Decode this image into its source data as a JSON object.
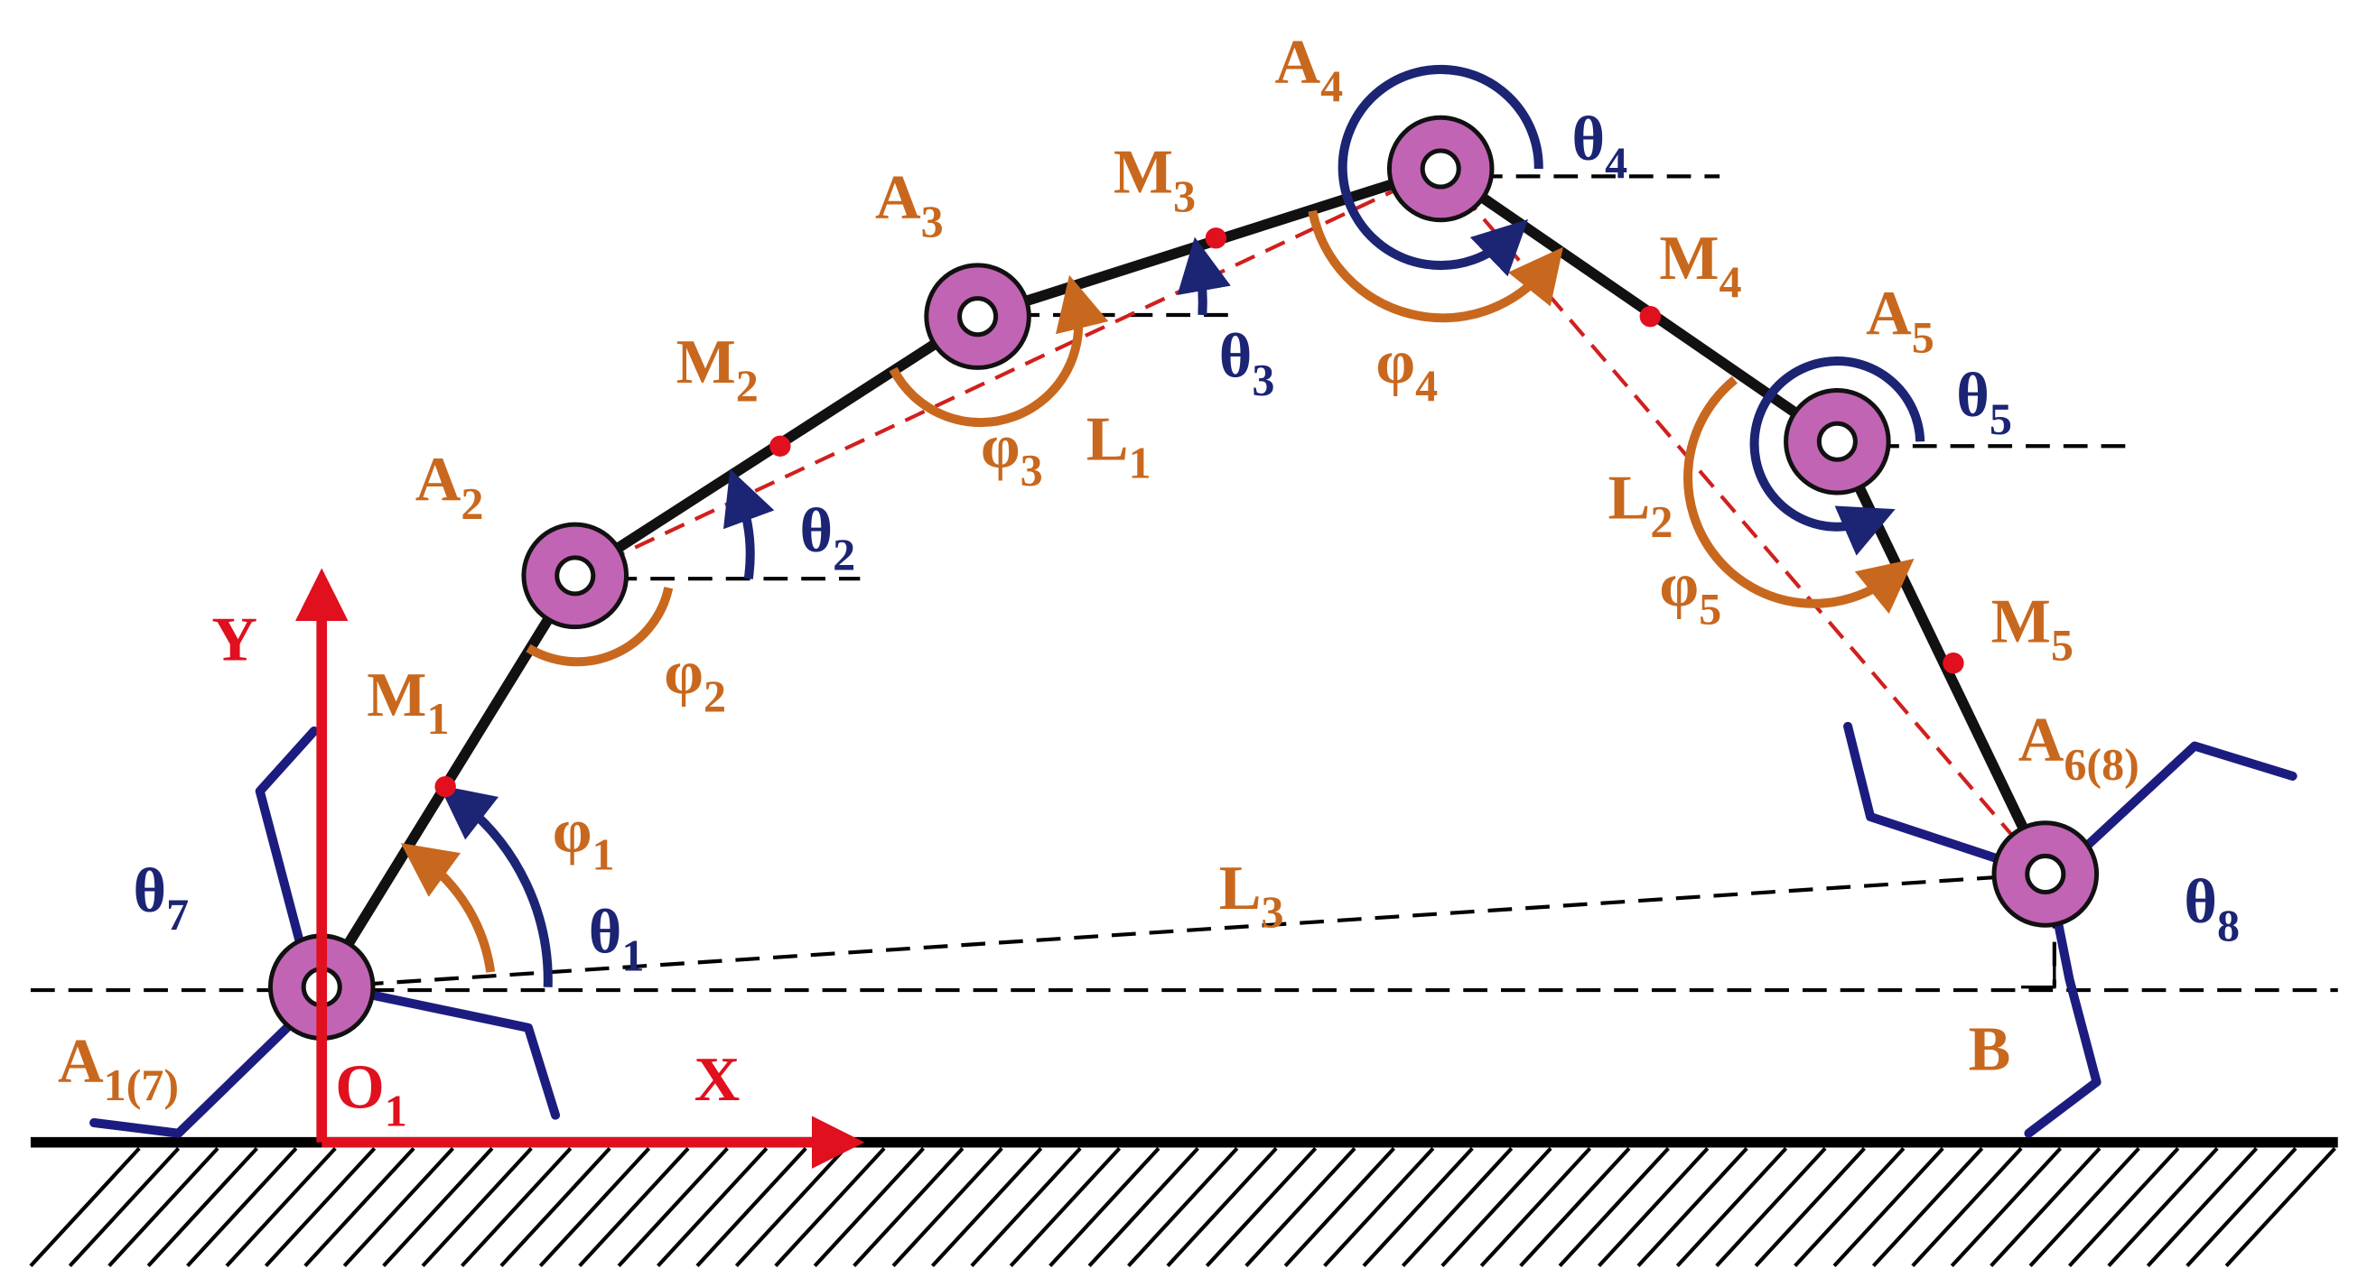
{
  "labels": [
    {
      "text": "A",
      "sub": "1(7)"
    },
    {
      "text": "A",
      "sub": "2"
    },
    {
      "text": "A",
      "sub": "3"
    },
    {
      "text": "A",
      "sub": "4"
    },
    {
      "text": "A",
      "sub": "5"
    },
    {
      "text": "A",
      "sub": "6(8)"
    },
    {
      "text": "M",
      "sub": "1"
    },
    {
      "text": "M",
      "sub": "2"
    },
    {
      "text": "M",
      "sub": "3"
    },
    {
      "text": "M",
      "sub": "4"
    },
    {
      "text": "M",
      "sub": "5"
    },
    {
      "text": "θ",
      "sub": "1"
    },
    {
      "text": "θ",
      "sub": "2"
    },
    {
      "text": "θ",
      "sub": "3"
    },
    {
      "text": "θ",
      "sub": "4"
    },
    {
      "text": "θ",
      "sub": "5"
    },
    {
      "text": "θ",
      "sub": "7"
    },
    {
      "text": "θ",
      "sub": "8"
    },
    {
      "text": "φ",
      "sub": "1"
    },
    {
      "text": "φ",
      "sub": "2"
    },
    {
      "text": "φ",
      "sub": "3"
    },
    {
      "text": "φ",
      "sub": "4"
    },
    {
      "text": "φ",
      "sub": "5"
    },
    {
      "text": "L",
      "sub": "1"
    },
    {
      "text": "L",
      "sub": "2"
    },
    {
      "text": "L",
      "sub": "3"
    },
    {
      "text": "B"
    },
    {
      "text": "X"
    },
    {
      "text": "Y"
    },
    {
      "text": "O",
      "sub": "1"
    }
  ]
}
